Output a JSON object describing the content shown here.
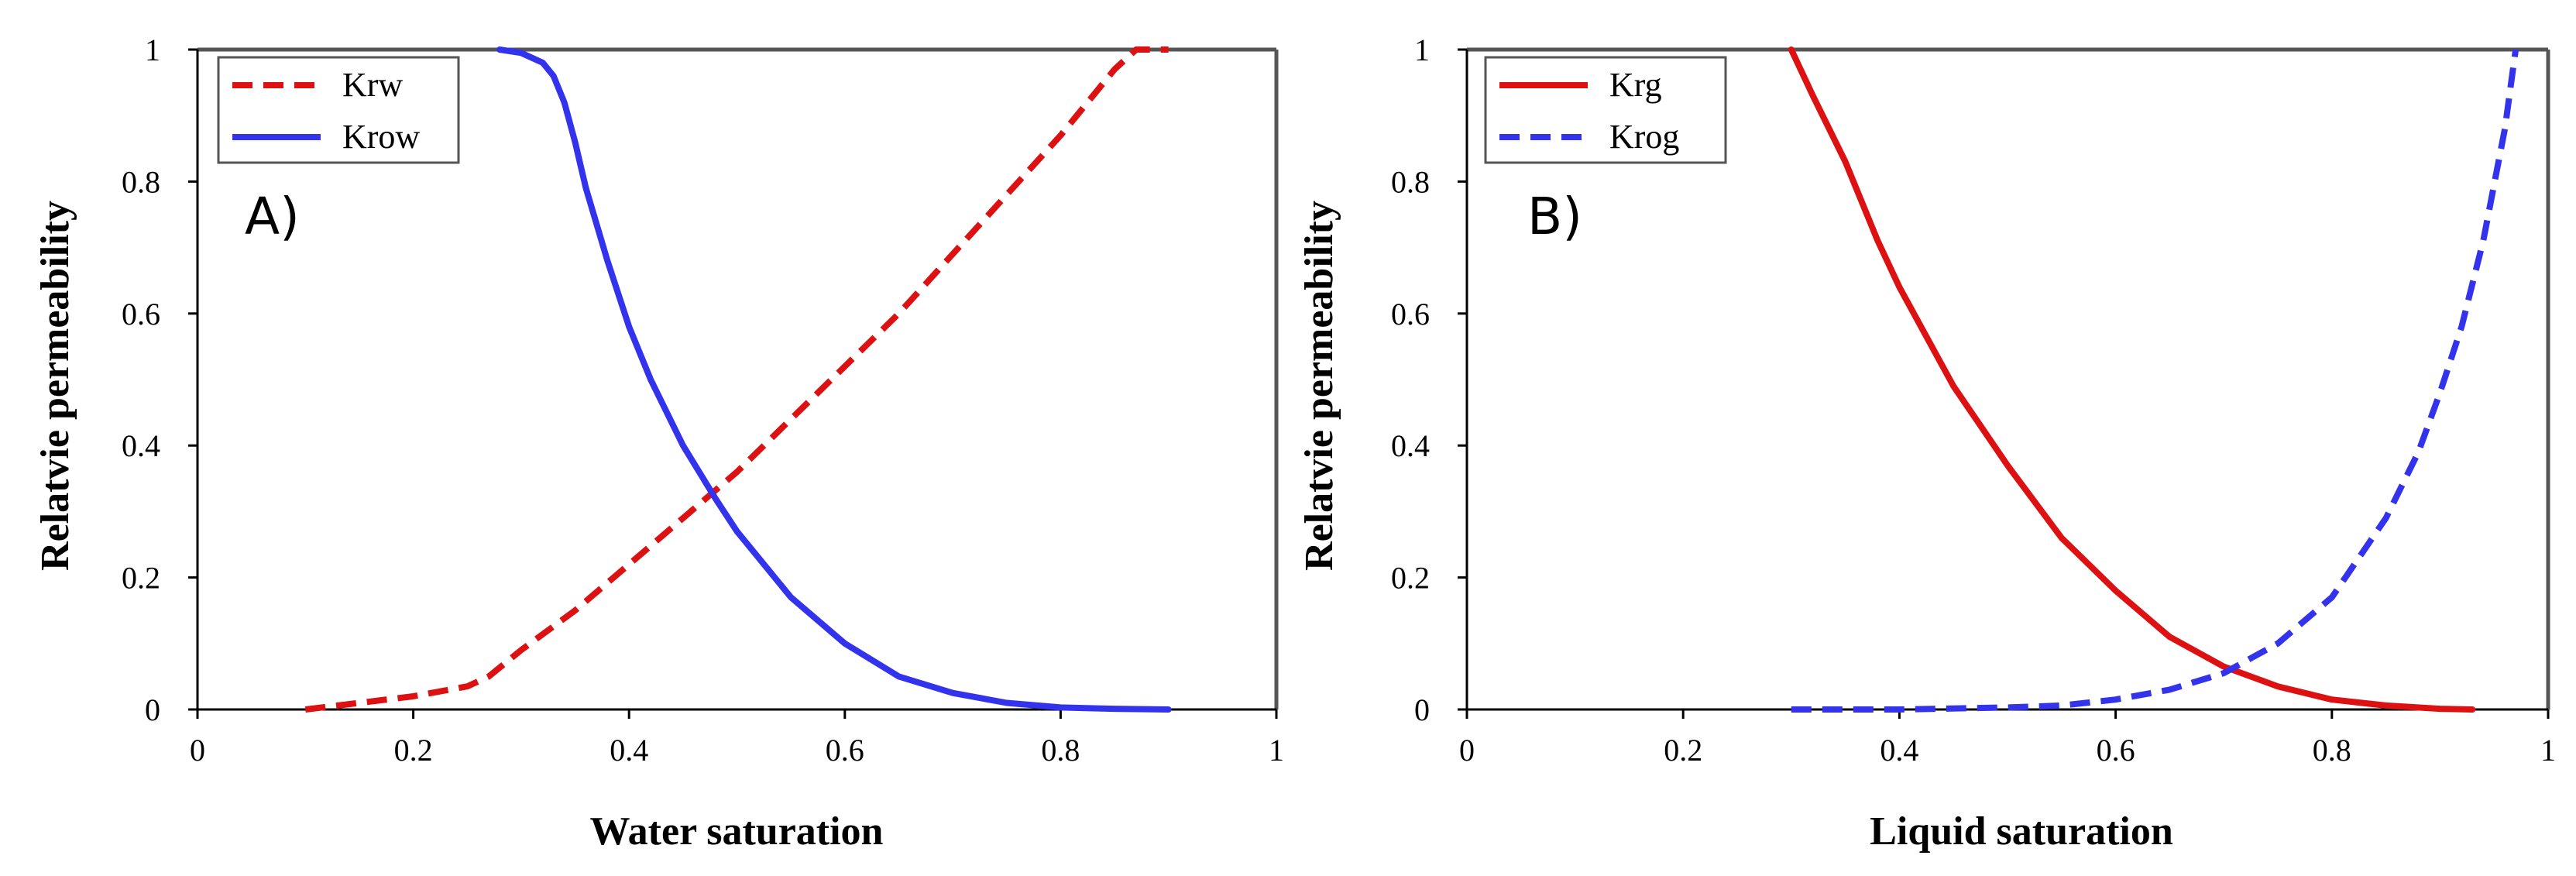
{
  "figure": {
    "colors": {
      "red": "#dd1111",
      "blue": "#3333ee",
      "frame": "#555555",
      "axis": "#000000"
    }
  },
  "chart_data": [
    {
      "type": "line",
      "panel_label": "A)",
      "xlabel": "Water saturation",
      "ylabel": "Relatvie permeability",
      "xlim": [
        0,
        1
      ],
      "ylim": [
        0,
        1
      ],
      "xticks": [
        "0",
        "0.2",
        "0.4",
        "0.6",
        "0.8",
        "1"
      ],
      "yticks": [
        "0",
        "0.2",
        "0.4",
        "0.6",
        "0.8",
        "1"
      ],
      "legend": "top-left",
      "series": [
        {
          "name": "Krw",
          "color": "#dd1111",
          "style": "dashed",
          "x": [
            0.1,
            0.15,
            0.2,
            0.25,
            0.27,
            0.3,
            0.35,
            0.4,
            0.45,
            0.5,
            0.55,
            0.6,
            0.65,
            0.7,
            0.75,
            0.8,
            0.85,
            0.87,
            0.9
          ],
          "y": [
            0.0,
            0.01,
            0.02,
            0.035,
            0.05,
            0.09,
            0.15,
            0.22,
            0.29,
            0.36,
            0.44,
            0.52,
            0.6,
            0.69,
            0.78,
            0.87,
            0.97,
            1.0,
            1.0
          ]
        },
        {
          "name": "Krow",
          "color": "#3333ee",
          "style": "solid",
          "x": [
            0.28,
            0.3,
            0.32,
            0.33,
            0.34,
            0.35,
            0.36,
            0.38,
            0.4,
            0.42,
            0.45,
            0.48,
            0.5,
            0.55,
            0.6,
            0.65,
            0.7,
            0.75,
            0.8,
            0.85,
            0.9
          ],
          "y": [
            1.0,
            0.995,
            0.98,
            0.96,
            0.92,
            0.86,
            0.79,
            0.68,
            0.58,
            0.5,
            0.4,
            0.32,
            0.27,
            0.17,
            0.1,
            0.05,
            0.025,
            0.01,
            0.003,
            0.001,
            0.0
          ]
        }
      ]
    },
    {
      "type": "line",
      "panel_label": "B)",
      "xlabel": "Liquid saturation",
      "ylabel": "Relatvie permeability",
      "xlim": [
        0,
        1
      ],
      "ylim": [
        0,
        1
      ],
      "xticks": [
        "0",
        "0.2",
        "0.4",
        "0.6",
        "0.8",
        "1"
      ],
      "yticks": [
        "0",
        "0.2",
        "0.4",
        "0.6",
        "0.8",
        "1"
      ],
      "legend": "top-left",
      "series": [
        {
          "name": "Krg",
          "color": "#dd1111",
          "style": "solid",
          "x": [
            0.3,
            0.32,
            0.35,
            0.38,
            0.4,
            0.45,
            0.5,
            0.55,
            0.6,
            0.65,
            0.7,
            0.75,
            0.8,
            0.85,
            0.9,
            0.93
          ],
          "y": [
            1.0,
            0.93,
            0.83,
            0.71,
            0.64,
            0.49,
            0.37,
            0.26,
            0.18,
            0.11,
            0.065,
            0.035,
            0.015,
            0.006,
            0.001,
            0.0
          ]
        },
        {
          "name": "Krog",
          "color": "#3333ee",
          "style": "dashed",
          "x": [
            0.3,
            0.4,
            0.5,
            0.55,
            0.6,
            0.65,
            0.7,
            0.75,
            0.8,
            0.85,
            0.88,
            0.9,
            0.92,
            0.94,
            0.96,
            0.97
          ],
          "y": [
            0.0,
            0.0,
            0.003,
            0.006,
            0.015,
            0.03,
            0.055,
            0.1,
            0.17,
            0.29,
            0.39,
            0.48,
            0.58,
            0.71,
            0.88,
            1.0
          ]
        }
      ]
    }
  ]
}
